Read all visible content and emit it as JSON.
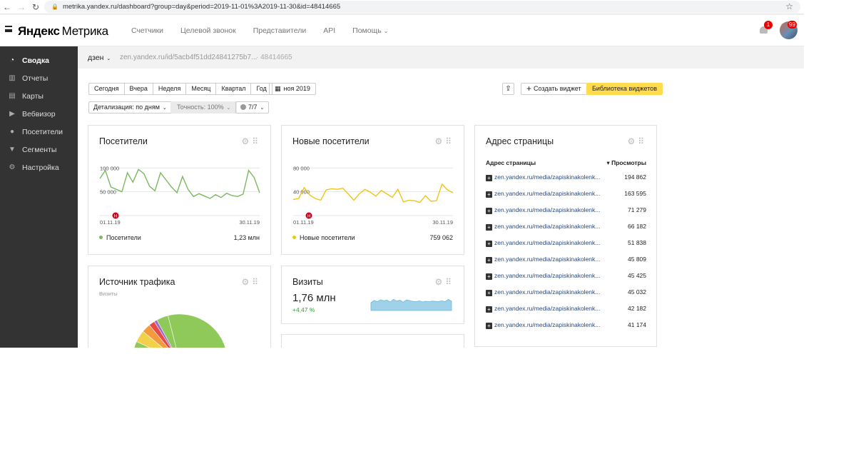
{
  "browser": {
    "url": "metrika.yandex.ru/dashboard?group=day&period=2019-11-01%3A2019-11-30&id=48414665"
  },
  "header": {
    "logo_yandex": "Яндекс",
    "logo_product": "Метрика",
    "nav": [
      "Счетчики",
      "Целевой звонок",
      "Представители",
      "API",
      "Помощь"
    ],
    "notifications_count": "1",
    "avatar_badge": "99"
  },
  "sidebar": {
    "items": [
      {
        "label": "Сводка",
        "icon": "gauge-icon",
        "active": true
      },
      {
        "label": "Отчеты",
        "icon": "bar-chart-icon",
        "active": false
      },
      {
        "label": "Карты",
        "icon": "map-icon",
        "active": false
      },
      {
        "label": "Вебвизор",
        "icon": "play-icon",
        "active": false
      },
      {
        "label": "Посетители",
        "icon": "person-icon",
        "active": false
      },
      {
        "label": "Сегменты",
        "icon": "filter-icon",
        "active": false
      },
      {
        "label": "Настройка",
        "icon": "gear-icon",
        "active": false
      }
    ]
  },
  "counter": {
    "name": "дзен",
    "url": "zen.yandex.ru/id/5acb4f51dd24841275b7...",
    "id": "· 48414665"
  },
  "toolbar": {
    "periods": [
      "Сегодня",
      "Вчера",
      "Неделя",
      "Месяц",
      "Квартал",
      "Год"
    ],
    "date_range": "ноя 2019",
    "detail": "Детализация: по дням",
    "accuracy": "Точность: 100%",
    "segments": "7/7",
    "create_widget": "Создать виджет",
    "widget_library": "Библиотека виджетов"
  },
  "widgets": {
    "visitors": {
      "title": "Посетители",
      "legend": "Посетители",
      "total": "1,23 млн",
      "y_label_top": "100 000",
      "y_label_mid": "50 000",
      "x_start": "01.11.19",
      "x_end": "30.11.19",
      "marker": "Н"
    },
    "new_visitors": {
      "title": "Новые посетители",
      "legend": "Новые посетители",
      "total": "759 062",
      "y_label_top": "80 000",
      "y_label_mid": "40 000",
      "x_start": "01.11.19",
      "x_end": "30.11.19",
      "marker": "Н"
    },
    "traffic": {
      "title": "Источник трафика",
      "subtitle": "Визиты"
    },
    "visits": {
      "title": "Визиты",
      "value": "1,76 млн",
      "delta": "+4,47 %"
    },
    "pages": {
      "title": "Адрес страницы",
      "col_url": "Адрес страницы",
      "col_views": "▾ Просмотры",
      "rows": [
        {
          "url": "zen.yandex.ru/media/zapiskinakolenk...",
          "views": "194 862"
        },
        {
          "url": "zen.yandex.ru/media/zapiskinakolenk...",
          "views": "163 595"
        },
        {
          "url": "zen.yandex.ru/media/zapiskinakolenk...",
          "views": "71 279"
        },
        {
          "url": "zen.yandex.ru/media/zapiskinakolenk...",
          "views": "66 182"
        },
        {
          "url": "zen.yandex.ru/media/zapiskinakolenk...",
          "views": "51 838"
        },
        {
          "url": "zen.yandex.ru/media/zapiskinakolenk...",
          "views": "45 809"
        },
        {
          "url": "zen.yandex.ru/media/zapiskinakolenk...",
          "views": "45 425"
        },
        {
          "url": "zen.yandex.ru/media/zapiskinakolenk...",
          "views": "45 032"
        },
        {
          "url": "zen.yandex.ru/media/zapiskinakolenk...",
          "views": "42 182"
        },
        {
          "url": "zen.yandex.ru/media/zapiskinakolenk...",
          "views": "41 174"
        }
      ]
    }
  },
  "chart_data": [
    {
      "type": "line",
      "title": "Посетители",
      "ylim": [
        0,
        120000
      ],
      "series": [
        {
          "name": "Посетители",
          "color": "#7bb860",
          "values": [
            78000,
            95000,
            60000,
            55000,
            50000,
            90000,
            70000,
            97000,
            88000,
            62000,
            52000,
            90000,
            75000,
            60000,
            48000,
            82000,
            55000,
            40000,
            46000,
            41000,
            36000,
            44000,
            38000,
            47000,
            42000,
            40000,
            45000,
            95000,
            80000,
            48000
          ]
        }
      ]
    },
    {
      "type": "line",
      "title": "Новые посетители",
      "ylim": [
        0,
        100000
      ],
      "series": [
        {
          "name": "Новые посетители",
          "color": "#f0c419",
          "values": [
            28000,
            30000,
            49000,
            36000,
            30000,
            27000,
            45000,
            47000,
            46000,
            48000,
            38000,
            27000,
            38000,
            46000,
            41000,
            34000,
            44000,
            38000,
            32000,
            46000,
            24000,
            27000,
            26000,
            23000,
            35000,
            25000,
            26000,
            55000,
            45000,
            40000
          ]
        }
      ]
    },
    {
      "type": "area",
      "title": "Визиты",
      "series": [
        {
          "name": "Визиты",
          "color": "#9fd2e8",
          "values": [
            55,
            70,
            62,
            75,
            68,
            73,
            60,
            78,
            66,
            72,
            58,
            74,
            70,
            64,
            62,
            68,
            60,
            65,
            62,
            66,
            64,
            63,
            68,
            62,
            78,
            65
          ]
        }
      ]
    },
    {
      "type": "pie",
      "title": "Источник трафика",
      "series": [
        {
          "name": "slices",
          "values": [
            86,
            4,
            3,
            2,
            1,
            4
          ],
          "colors": [
            "#8fc95a",
            "#f2d04a",
            "#f39a3c",
            "#e84a4a",
            "#9b6ac9",
            "#8fc95a"
          ]
        }
      ]
    }
  ]
}
